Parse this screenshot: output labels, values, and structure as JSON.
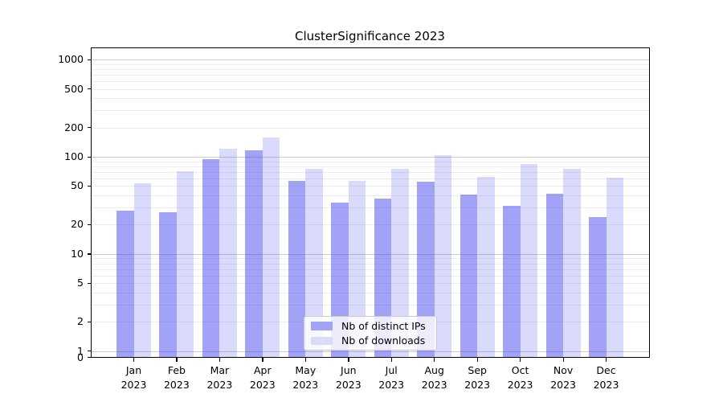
{
  "title": "ClusterSignificance 2023",
  "colors": {
    "bar_distinct_ips": "rgba(70,70,238,0.5)",
    "bar_downloads": "rgba(70,70,238,0.2)",
    "bar_distinct_ips_solid": "#a3a3f6",
    "bar_downloads_solid": "#dbdbfa",
    "grid_major": "rgba(0,0,0,0.20)",
    "grid_minor": "rgba(0,0,0,0.07)",
    "spine": "#000000"
  },
  "legend": {
    "items": [
      {
        "label": "Nb of distinct IPs",
        "color": "#a3a3f6"
      },
      {
        "label": "Nb of downloads",
        "color": "#dbdbfa"
      }
    ]
  },
  "chart_data": {
    "type": "bar",
    "title": "ClusterSignificance 2023",
    "categories": [
      "Jan 2023",
      "Feb 2023",
      "Mar 2023",
      "Apr 2023",
      "May 2023",
      "Jun 2023",
      "Jul 2023",
      "Aug 2023",
      "Sep 2023",
      "Oct 2023",
      "Nov 2023",
      "Dec 2023"
    ],
    "x_tick_months": [
      "Jan",
      "Feb",
      "Mar",
      "Apr",
      "May",
      "Jun",
      "Jul",
      "Aug",
      "Sep",
      "Oct",
      "Nov",
      "Dec"
    ],
    "x_tick_year": "2023",
    "series": [
      {
        "name": "Nb of distinct IPs",
        "values": [
          28,
          27,
          95,
          117,
          56,
          34,
          37,
          55,
          41,
          31,
          42,
          24
        ]
      },
      {
        "name": "Nb of downloads",
        "values": [
          53,
          71,
          120,
          158,
          75,
          57,
          75,
          103,
          62,
          84,
          75,
          61
        ]
      }
    ],
    "xlabel": "",
    "ylabel": "",
    "yscale": "log-with-zero",
    "yticks": [
      1000,
      500,
      200,
      100,
      50,
      20,
      10,
      5,
      2,
      1,
      0
    ],
    "ylim": [
      0,
      1340
    ],
    "grid": "both",
    "legend_position": "lower center"
  }
}
